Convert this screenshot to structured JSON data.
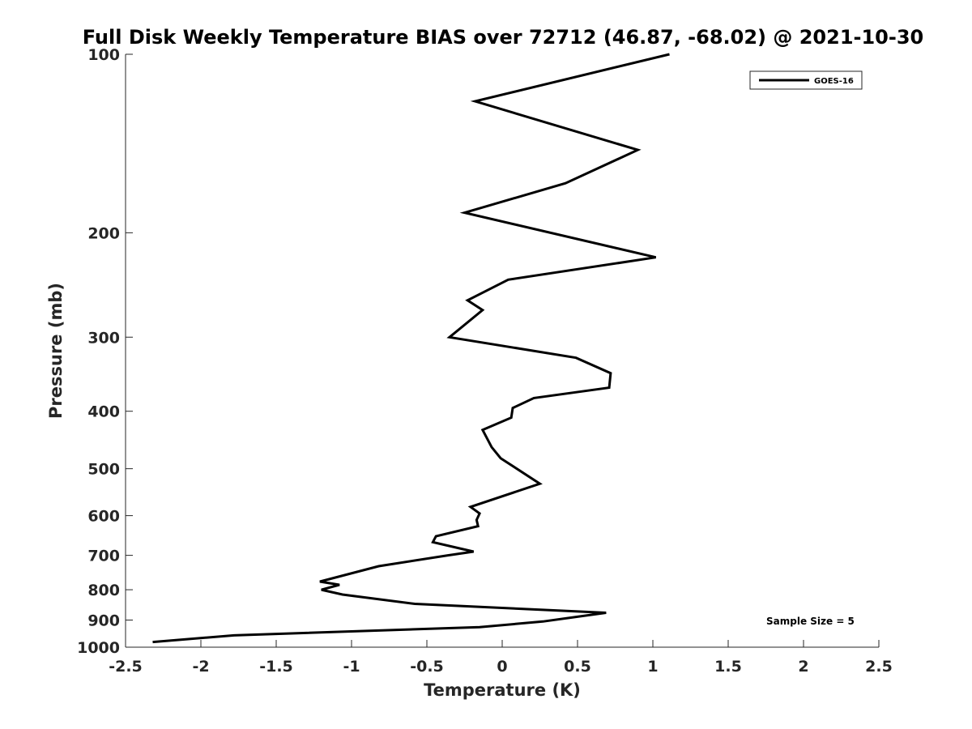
{
  "chart_data": {
    "type": "line",
    "title": "Full Disk Weekly Temperature BIAS over 72712 (46.87, -68.02) @ 2021-10-30",
    "xlabel": "Temperature (K)",
    "ylabel": "Pressure (mb)",
    "xlim": [
      -2.5,
      2.5
    ],
    "ylim": [
      100,
      1000
    ],
    "y_scale": "log",
    "y_reversed": true,
    "x_ticks": [
      -2.5,
      -2,
      -1.5,
      -1,
      -0.5,
      0,
      0.5,
      1,
      1.5,
      2,
      2.5
    ],
    "x_tick_labels": [
      "-2.5",
      "-2",
      "-1.5",
      "-1",
      "-0.5",
      "0",
      "0.5",
      "1",
      "1.5",
      "2",
      "2.5"
    ],
    "y_ticks": [
      100,
      200,
      300,
      400,
      500,
      600,
      700,
      800,
      900,
      1000
    ],
    "y_tick_labels": [
      "100",
      "200",
      "300",
      "400",
      "500",
      "600",
      "700",
      "800",
      "900",
      "1000"
    ],
    "grid": false,
    "legend_position": "top-right",
    "annotation": "Sample Size = 5",
    "series": [
      {
        "name": "GOES-16",
        "color": "#000000",
        "x": [
          1.11,
          -0.18,
          0.9,
          0.42,
          -0.25,
          1.02,
          0.04,
          -0.23,
          -0.13,
          -0.35,
          0.49,
          0.72,
          0.71,
          0.21,
          0.07,
          0.06,
          -0.13,
          -0.07,
          -0.01,
          0.25,
          -0.21,
          -0.15,
          -0.17,
          -0.16,
          -0.44,
          -0.46,
          -0.19,
          -0.36,
          -0.82,
          -1.21,
          -1.08,
          -1.2,
          -1.06,
          -0.58,
          0.69,
          0.27,
          -0.15,
          -1.78,
          -2.32
        ],
        "y": [
          100,
          120,
          145,
          165,
          185,
          220,
          240,
          260,
          270,
          300,
          325,
          345,
          365,
          380,
          395,
          410,
          430,
          460,
          480,
          530,
          580,
          595,
          610,
          625,
          650,
          665,
          690,
          700,
          730,
          775,
          785,
          800,
          815,
          845,
          875,
          905,
          925,
          955,
          980
        ]
      }
    ]
  }
}
